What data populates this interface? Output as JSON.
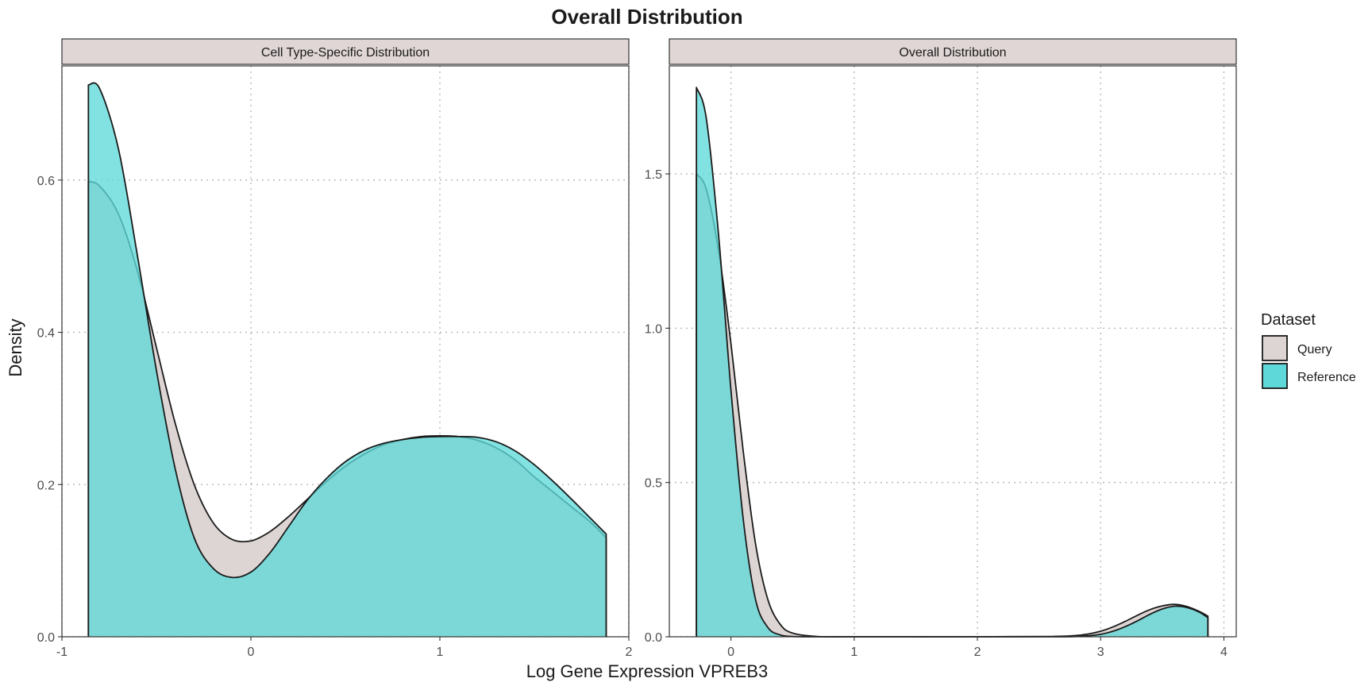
{
  "colors": {
    "query": "#DDD5D3",
    "reference": "#5FD8D9",
    "strip_background": "#E0D6D5"
  },
  "chart_data": {
    "type": "area",
    "title": "Overall Distribution",
    "xlabel": "Log Gene Expression VPREB3",
    "ylabel": "Density",
    "grid": true,
    "legend": {
      "title": "Dataset",
      "placement": "right",
      "entries": [
        "Query",
        "Reference"
      ]
    },
    "panels": [
      {
        "strip": "Cell Type-Specific Distribution",
        "xlim": [
          -1,
          2
        ],
        "ylim": [
          0,
          0.75
        ],
        "x_ticks": [
          -1,
          0,
          1,
          2
        ],
        "x_tick_labels": [
          "-1",
          "0",
          "1",
          "2"
        ],
        "y_ticks": [
          0,
          0.2,
          0.4,
          0.6
        ],
        "y_tick_labels": [
          "0.0",
          "0.2",
          "0.4",
          "0.6"
        ],
        "series": [
          {
            "name": "Query",
            "x": [
              -0.86,
              -0.8,
              -0.7,
              -0.6,
              -0.5,
              -0.4,
              -0.3,
              -0.2,
              -0.1,
              0.0,
              0.1,
              0.2,
              0.3,
              0.4,
              0.5,
              0.6,
              0.7,
              0.8,
              0.9,
              1.0,
              1.1,
              1.2,
              1.3,
              1.4,
              1.5,
              1.6,
              1.7,
              1.8,
              1.88
            ],
            "values": [
              0.598,
              0.592,
              0.555,
              0.48,
              0.38,
              0.28,
              0.2,
              0.15,
              0.128,
              0.126,
              0.138,
              0.158,
              0.181,
              0.204,
              0.224,
              0.24,
              0.252,
              0.259,
              0.263,
              0.264,
              0.263,
              0.258,
              0.248,
              0.232,
              0.21,
              0.19,
              0.17,
              0.15,
              0.13
            ]
          },
          {
            "name": "Reference",
            "x": [
              -0.86,
              -0.8,
              -0.7,
              -0.6,
              -0.5,
              -0.4,
              -0.3,
              -0.2,
              -0.1,
              0.0,
              0.1,
              0.2,
              0.3,
              0.4,
              0.5,
              0.6,
              0.7,
              0.8,
              0.9,
              1.0,
              1.1,
              1.2,
              1.3,
              1.4,
              1.5,
              1.6,
              1.7,
              1.8,
              1.88
            ],
            "values": [
              0.725,
              0.72,
              0.64,
              0.5,
              0.35,
              0.22,
              0.13,
              0.09,
              0.078,
              0.085,
              0.11,
              0.145,
              0.18,
              0.208,
              0.23,
              0.245,
              0.254,
              0.259,
              0.262,
              0.263,
              0.263,
              0.262,
              0.256,
              0.244,
              0.226,
              0.204,
              0.18,
              0.155,
              0.135
            ]
          }
        ]
      },
      {
        "strip": "Overall Distribution",
        "xlim": [
          -0.5,
          4.1
        ],
        "ylim": [
          0,
          1.85
        ],
        "x_ticks": [
          0,
          1,
          2,
          3,
          4
        ],
        "x_tick_labels": [
          "0",
          "1",
          "2",
          "3",
          "4"
        ],
        "y_ticks": [
          0,
          0.5,
          1.0,
          1.5
        ],
        "y_tick_labels": [
          "0.0",
          "0.5",
          "1.0",
          "1.5"
        ],
        "series": [
          {
            "name": "Query",
            "x": [
              -0.28,
              -0.2,
              -0.1,
              0.0,
              0.1,
              0.2,
              0.3,
              0.4,
              0.5,
              0.7,
              1.0,
              2.0,
              2.6,
              2.8,
              2.9,
              3.0,
              3.1,
              3.2,
              3.3,
              3.4,
              3.5,
              3.6,
              3.7,
              3.8,
              3.87
            ],
            "values": [
              1.5,
              1.45,
              1.25,
              0.95,
              0.6,
              0.3,
              0.12,
              0.04,
              0.012,
              0.001,
              0.0,
              0.0,
              0.001,
              0.004,
              0.009,
              0.018,
              0.032,
              0.05,
              0.07,
              0.088,
              0.1,
              0.105,
              0.098,
              0.082,
              0.067
            ]
          },
          {
            "name": "Reference",
            "x": [
              -0.28,
              -0.2,
              -0.1,
              0.0,
              0.1,
              0.2,
              0.3,
              0.4,
              0.5,
              0.7,
              1.0,
              2.0,
              2.6,
              2.8,
              2.9,
              3.0,
              3.1,
              3.2,
              3.3,
              3.4,
              3.5,
              3.6,
              3.7,
              3.8,
              3.87
            ],
            "values": [
              1.78,
              1.68,
              1.3,
              0.8,
              0.38,
              0.12,
              0.03,
              0.006,
              0.001,
              0.0,
              0.0,
              0.0,
              0.0,
              0.001,
              0.003,
              0.008,
              0.018,
              0.033,
              0.052,
              0.073,
              0.09,
              0.099,
              0.095,
              0.08,
              0.062
            ]
          }
        ]
      }
    ]
  }
}
